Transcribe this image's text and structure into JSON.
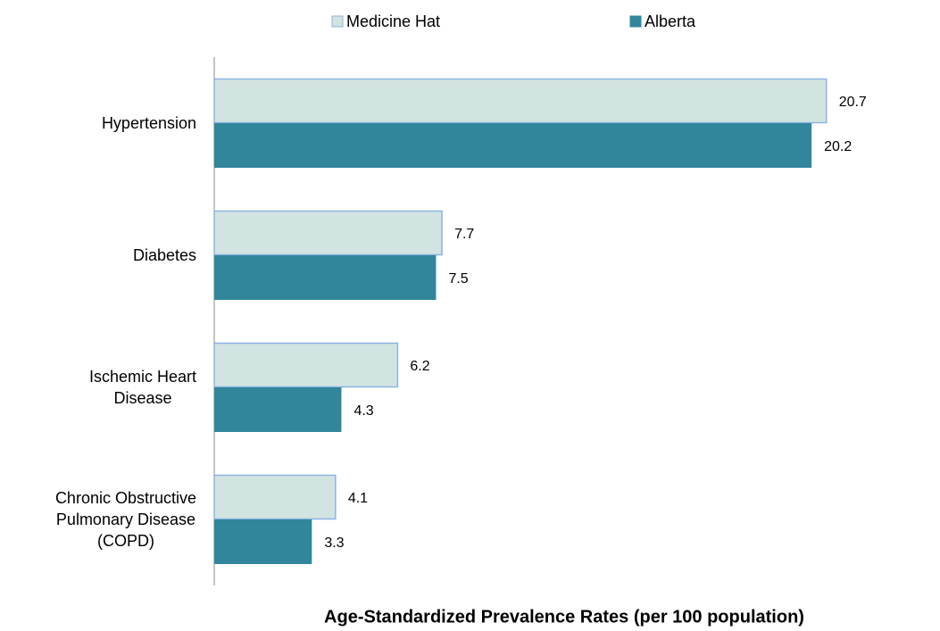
{
  "chart_data": {
    "type": "hbar",
    "title": "Age-Standardized Prevalence Rates (per 100 population)",
    "categories": [
      "Hypertension",
      "Diabetes",
      "Ischemic Heart\nDisease",
      "Chronic Obstructive\nPulmonary Disease\n(COPD)"
    ],
    "series": [
      {
        "name": "Medicine Hat",
        "color": "#d2e4e1",
        "stroke": "#8db3e2",
        "values": [
          20.7,
          7.7,
          6.2,
          4.1
        ]
      },
      {
        "name": "Alberta",
        "color": "#31869b",
        "values": [
          20.2,
          7.5,
          4.3,
          3.3
        ]
      }
    ],
    "xlim": [
      0,
      24
    ],
    "legend": "top"
  }
}
